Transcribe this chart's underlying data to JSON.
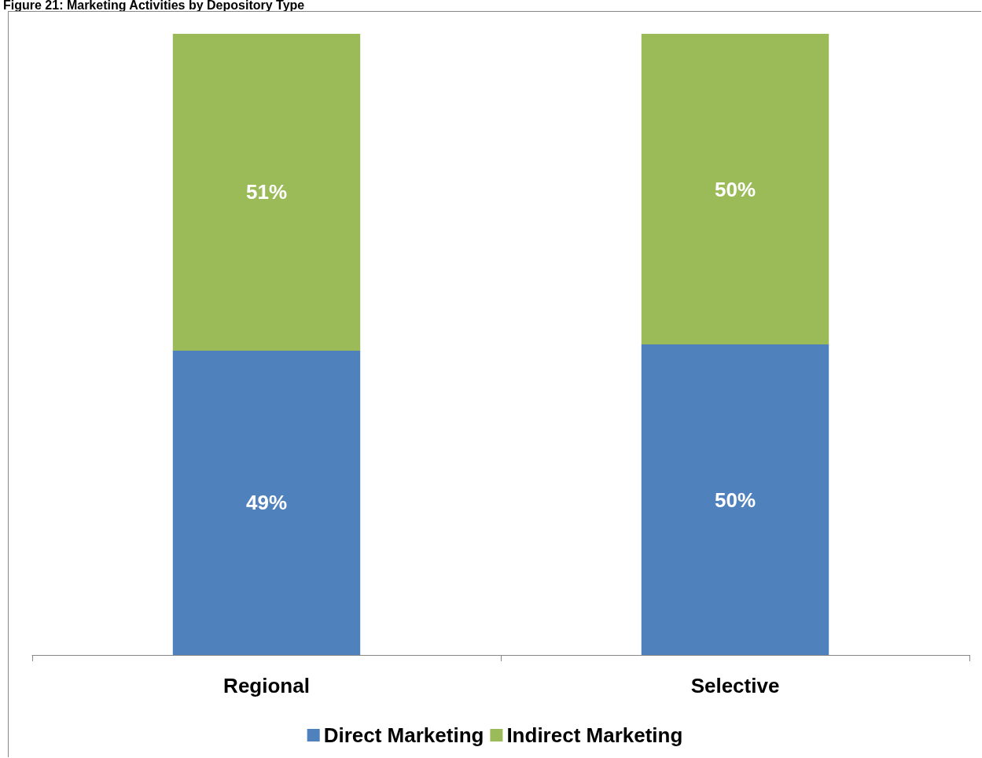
{
  "chart_data": {
    "type": "bar",
    "title": "Figure 21: Marketing Activities by Depository Type",
    "categories": [
      "Regional",
      "Selective"
    ],
    "stacked": true,
    "legend": "bottom",
    "series": [
      {
        "name": "Direct Marketing",
        "color": "#4f81bd",
        "values": [
          49,
          50
        ],
        "value_labels": [
          "49%",
          "50%"
        ]
      },
      {
        "name": "Indirect Marketing",
        "color": "#9bbb59",
        "values": [
          51,
          50
        ],
        "value_labels": [
          "51%",
          "50%"
        ]
      }
    ]
  }
}
